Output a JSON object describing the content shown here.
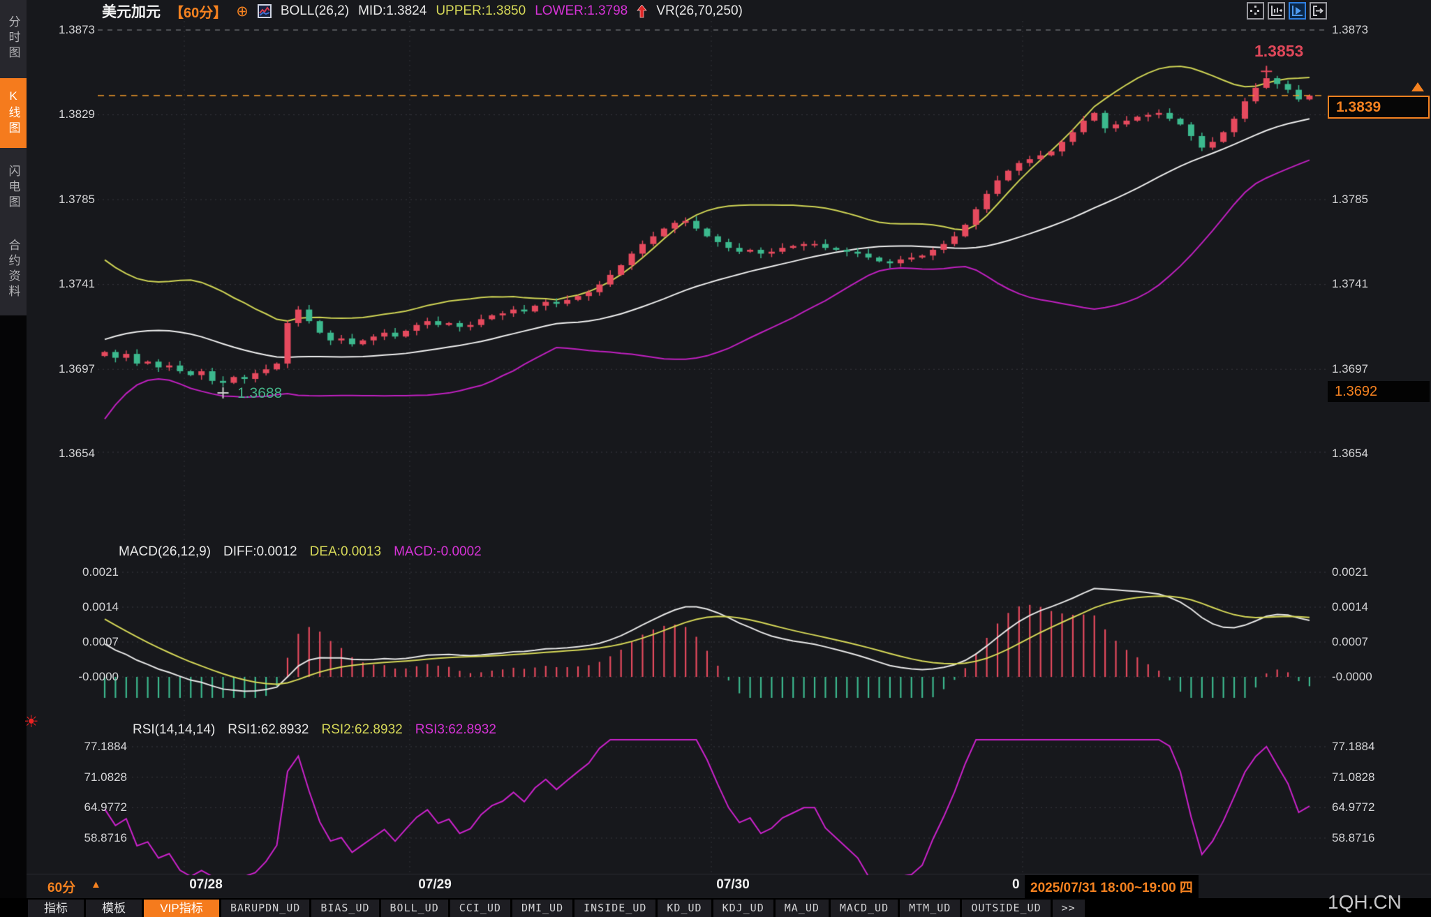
{
  "header": {
    "symbol": "美元加元",
    "period": "【60分】",
    "plus_icon": "⊕",
    "boll_label": "BOLL(26,2)",
    "mid": "MID:1.3824",
    "upper": "UPPER:1.3850",
    "lower": "LOWER:1.3798",
    "vr": "VR(26,70,250)"
  },
  "sidebar": {
    "items": [
      {
        "label": "分时图",
        "active": false
      },
      {
        "label": "K线图",
        "active": true
      },
      {
        "label": "闪电图",
        "active": false
      },
      {
        "label": "合约资料",
        "active": false
      }
    ]
  },
  "axis": {
    "price_labels": [
      "1.3873",
      "1.3829",
      "1.3785",
      "1.3741",
      "1.3697",
      "1.3654"
    ],
    "macd_labels": [
      "0.0021",
      "0.0014",
      "0.0007",
      "-0.0000"
    ],
    "rsi_labels": [
      "77.1884",
      "71.0828",
      "64.9772",
      "58.8716"
    ],
    "time_labels": [
      "07/28",
      "07/29",
      "07/30"
    ]
  },
  "price_marks": {
    "current": "1.3839",
    "secondary": "1.3692",
    "high_annotation": "1.3853",
    "low_annotation": "1.3688"
  },
  "macd_header": {
    "title": "MACD(26,12,9)",
    "diff": "DIFF:0.0012",
    "dea": "DEA:0.0013",
    "macd": "MACD:-0.0002"
  },
  "rsi_header": {
    "title": "RSI(14,14,14)",
    "rsi1": "RSI1:62.8932",
    "rsi2": "RSI2:62.8932",
    "rsi3": "RSI3:62.8932"
  },
  "footer": {
    "period": "60分",
    "up_triangle": "▲",
    "prefix": "0",
    "datetime": "2025/07/31 18:00~19:00 四",
    "watermark": "1QH.CN"
  },
  "tabs": [
    "指标",
    "模板",
    "VIP指标",
    "BARUPDN_UD",
    "BIAS_UD",
    "BOLL_UD",
    "CCI_UD",
    "DMI_UD",
    "INSIDE_UD",
    "KD_UD",
    "KDJ_UD",
    "MA_UD",
    "MACD_UD",
    "MTM_UD",
    "OUTSIDE_UD",
    ">>"
  ],
  "colors": {
    "up_candle": "#e64a5e",
    "down_candle": "#3cb98e",
    "boll_upper": "#cfd455",
    "boll_mid": "#f0f0f0",
    "boll_lower": "#c020c0",
    "accent_orange": "#f58220",
    "macd_diff": "#e8e8e8",
    "macd_dea": "#d6d858",
    "rsi_line": "#cc22cc",
    "grid": "#3a3a40",
    "grid_bright": "#8d8d93"
  },
  "chart_data": {
    "type": "candlestick",
    "symbol": "USDCAD 美元加元",
    "interval": "60min",
    "price_grid": [
      1.3873,
      1.3829,
      1.3785,
      1.3741,
      1.3697,
      1.3654
    ],
    "macd_grid": [
      0.0021,
      0.0014,
      0.0007,
      0.0
    ],
    "rsi_grid": [
      77.1884,
      71.0828,
      64.9772,
      58.8716
    ],
    "current": 1.3839,
    "secondary": 1.3692,
    "high_annotation": 1.3853,
    "low_annotation": 1.3688,
    "boll": {
      "period": 26,
      "mult": 2,
      "mid": 1.3824,
      "upper": 1.385,
      "lower": 1.3798
    },
    "macd": {
      "fast": 12,
      "slow": 26,
      "signal": 9,
      "diff": 0.0012,
      "dea": 0.0013,
      "hist": -0.0002
    },
    "rsi": {
      "period": 14,
      "rsi1": 62.8932,
      "rsi2": 62.8932,
      "rsi3": 62.8932
    },
    "closes": [
      1.3706,
      1.3703,
      1.3705,
      1.37,
      1.3701,
      1.3698,
      1.3699,
      1.3696,
      1.3694,
      1.3696,
      1.3691,
      1.369,
      1.3693,
      1.3692,
      1.3695,
      1.3697,
      1.37,
      1.3721,
      1.3728,
      1.3722,
      1.3716,
      1.3712,
      1.3713,
      1.371,
      1.3712,
      1.3714,
      1.3716,
      1.3714,
      1.3717,
      1.372,
      1.3722,
      1.372,
      1.3721,
      1.3719,
      1.372,
      1.3723,
      1.3725,
      1.3726,
      1.3728,
      1.3727,
      1.373,
      1.3732,
      1.3731,
      1.3733,
      1.3735,
      1.3737,
      1.3741,
      1.3746,
      1.3751,
      1.3757,
      1.3762,
      1.3766,
      1.377,
      1.3773,
      1.3774,
      1.377,
      1.3766,
      1.3763,
      1.376,
      1.3758,
      1.3759,
      1.3757,
      1.3758,
      1.376,
      1.3761,
      1.3762,
      1.3762,
      1.376,
      1.3759,
      1.3758,
      1.3757,
      1.3755,
      1.3753,
      1.3752,
      1.3754,
      1.3755,
      1.3756,
      1.3759,
      1.3762,
      1.3766,
      1.3772,
      1.378,
      1.3788,
      1.3795,
      1.38,
      1.3804,
      1.3806,
      1.3808,
      1.381,
      1.3815,
      1.382,
      1.3826,
      1.383,
      1.3822,
      1.3824,
      1.3826,
      1.3828,
      1.3829,
      1.383,
      1.3827,
      1.3824,
      1.3818,
      1.3812,
      1.3815,
      1.382,
      1.3827,
      1.3836,
      1.3843,
      1.3848,
      1.3845,
      1.3842,
      1.3837,
      1.3839
    ]
  }
}
